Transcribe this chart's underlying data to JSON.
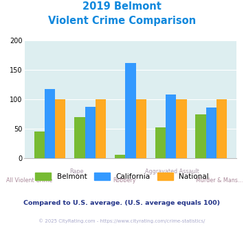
{
  "title_line1": "2019 Belmont",
  "title_line2": "Violent Crime Comparison",
  "belmont": [
    46,
    70,
    6,
    53,
    75
  ],
  "california": [
    118,
    87,
    162,
    108,
    86
  ],
  "national": [
    100,
    100,
    100,
    100,
    100
  ],
  "belmont_color": "#77bb33",
  "california_color": "#3399ff",
  "national_color": "#ffaa22",
  "bg_color": "#ddeef0",
  "title_color": "#1188dd",
  "ylim": [
    0,
    200
  ],
  "yticks": [
    0,
    50,
    100,
    150,
    200
  ],
  "top_labels": [
    "",
    "Rape",
    "",
    "Aggravated Assault",
    ""
  ],
  "bottom_labels": [
    "All Violent Crime",
    "",
    "Robbery",
    "",
    "Murder & Mans..."
  ],
  "top_label_color": "#aa99aa",
  "bottom_label_color": "#aa8899",
  "subtitle_text": "Compared to U.S. average. (U.S. average equals 100)",
  "subtitle_color": "#223388",
  "footer_text": "© 2025 CityRating.com - https://www.cityrating.com/crime-statistics/",
  "footer_color": "#aaaacc"
}
